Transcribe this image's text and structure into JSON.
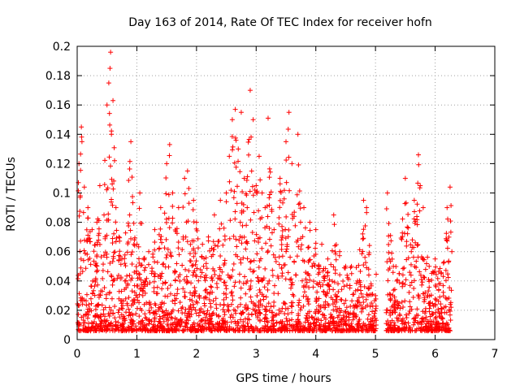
{
  "chart_data": {
    "type": "scatter",
    "title": "Day 163 of 2014, Rate Of TEC Index for receiver hofn",
    "xlabel": "GPS time / hours",
    "ylabel": "ROTI / TECUs",
    "xlim": [
      0,
      7
    ],
    "ylim": [
      0,
      0.2
    ],
    "xticks": [
      0,
      1,
      2,
      3,
      4,
      5,
      6,
      7
    ],
    "xtick_labels": [
      "0",
      "1",
      "2",
      "3",
      "4",
      "5",
      "6",
      "7"
    ],
    "yticks": [
      0,
      0.02,
      0.04,
      0.06,
      0.08,
      0.1,
      0.12,
      0.14,
      0.16,
      0.18,
      0.2
    ],
    "ytick_labels": [
      "0",
      "0.02",
      "0.04",
      "0.06",
      "0.08",
      "0.1",
      "0.12",
      "0.14",
      "0.16",
      "0.18",
      "0.2"
    ],
    "grid": true,
    "marker": "+",
    "color": "#ff0000",
    "x_range_of_data": [
      0,
      6.28
    ],
    "points": [
      [
        0.02,
        0.007
      ],
      [
        0.03,
        0.12
      ],
      [
        0.05,
        0.097
      ],
      [
        0.07,
        0.145
      ],
      [
        0.08,
        0.135
      ],
      [
        0.12,
        0.104
      ],
      [
        0.18,
        0.09
      ],
      [
        0.25,
        0.075
      ],
      [
        0.33,
        0.08
      ],
      [
        0.38,
        0.105
      ],
      [
        0.45,
        0.085
      ],
      [
        0.5,
        0.16
      ],
      [
        0.53,
        0.175
      ],
      [
        0.55,
        0.185
      ],
      [
        0.56,
        0.196
      ],
      [
        0.6,
        0.163
      ],
      [
        0.65,
        0.09
      ],
      [
        0.7,
        0.07
      ],
      [
        0.75,
        0.055
      ],
      [
        0.8,
        0.04
      ],
      [
        0.88,
        0.085
      ],
      [
        0.9,
        0.135
      ],
      [
        0.95,
        0.065
      ],
      [
        1.0,
        0.045
      ],
      [
        1.05,
        0.1
      ],
      [
        1.1,
        0.03
      ],
      [
        1.2,
        0.06
      ],
      [
        1.3,
        0.075
      ],
      [
        1.4,
        0.09
      ],
      [
        1.5,
        0.12
      ],
      [
        1.55,
        0.133
      ],
      [
        1.6,
        0.1
      ],
      [
        1.7,
        0.09
      ],
      [
        1.8,
        0.11
      ],
      [
        1.85,
        0.115
      ],
      [
        1.95,
        0.095
      ],
      [
        2.0,
        0.08
      ],
      [
        2.1,
        0.065
      ],
      [
        2.2,
        0.07
      ],
      [
        2.3,
        0.085
      ],
      [
        2.4,
        0.095
      ],
      [
        2.5,
        0.1
      ],
      [
        2.55,
        0.125
      ],
      [
        2.6,
        0.15
      ],
      [
        2.65,
        0.157
      ],
      [
        2.7,
        0.13
      ],
      [
        2.75,
        0.155
      ],
      [
        2.8,
        0.11
      ],
      [
        2.85,
        0.09
      ],
      [
        2.9,
        0.17
      ],
      [
        2.95,
        0.15
      ],
      [
        3.0,
        0.105
      ],
      [
        3.05,
        0.125
      ],
      [
        3.1,
        0.1
      ],
      [
        3.15,
        0.09
      ],
      [
        3.2,
        0.151
      ],
      [
        3.3,
        0.075
      ],
      [
        3.4,
        0.11
      ],
      [
        3.5,
        0.135
      ],
      [
        3.55,
        0.155
      ],
      [
        3.6,
        0.12
      ],
      [
        3.7,
        0.14
      ],
      [
        3.8,
        0.09
      ],
      [
        3.9,
        0.08
      ],
      [
        4.0,
        0.075
      ],
      [
        4.1,
        0.065
      ],
      [
        4.2,
        0.055
      ],
      [
        4.3,
        0.085
      ],
      [
        4.4,
        0.06
      ],
      [
        4.5,
        0.05
      ],
      [
        4.6,
        0.045
      ],
      [
        4.7,
        0.04
      ],
      [
        4.8,
        0.095
      ],
      [
        4.85,
        0.09
      ],
      [
        4.9,
        0.035
      ],
      [
        5.0,
        0.03
      ],
      [
        5.2,
        0.1
      ],
      [
        5.3,
        0.05
      ],
      [
        5.4,
        0.045
      ],
      [
        5.5,
        0.11
      ],
      [
        5.6,
        0.06
      ],
      [
        5.65,
        0.095
      ],
      [
        5.72,
        0.126
      ],
      [
        5.75,
        0.105
      ],
      [
        5.8,
        0.09
      ],
      [
        5.9,
        0.05
      ],
      [
        6.0,
        0.055
      ],
      [
        6.1,
        0.045
      ],
      [
        6.2,
        0.09
      ],
      [
        6.25,
        0.104
      ],
      [
        6.28,
        0.06
      ]
    ]
  }
}
